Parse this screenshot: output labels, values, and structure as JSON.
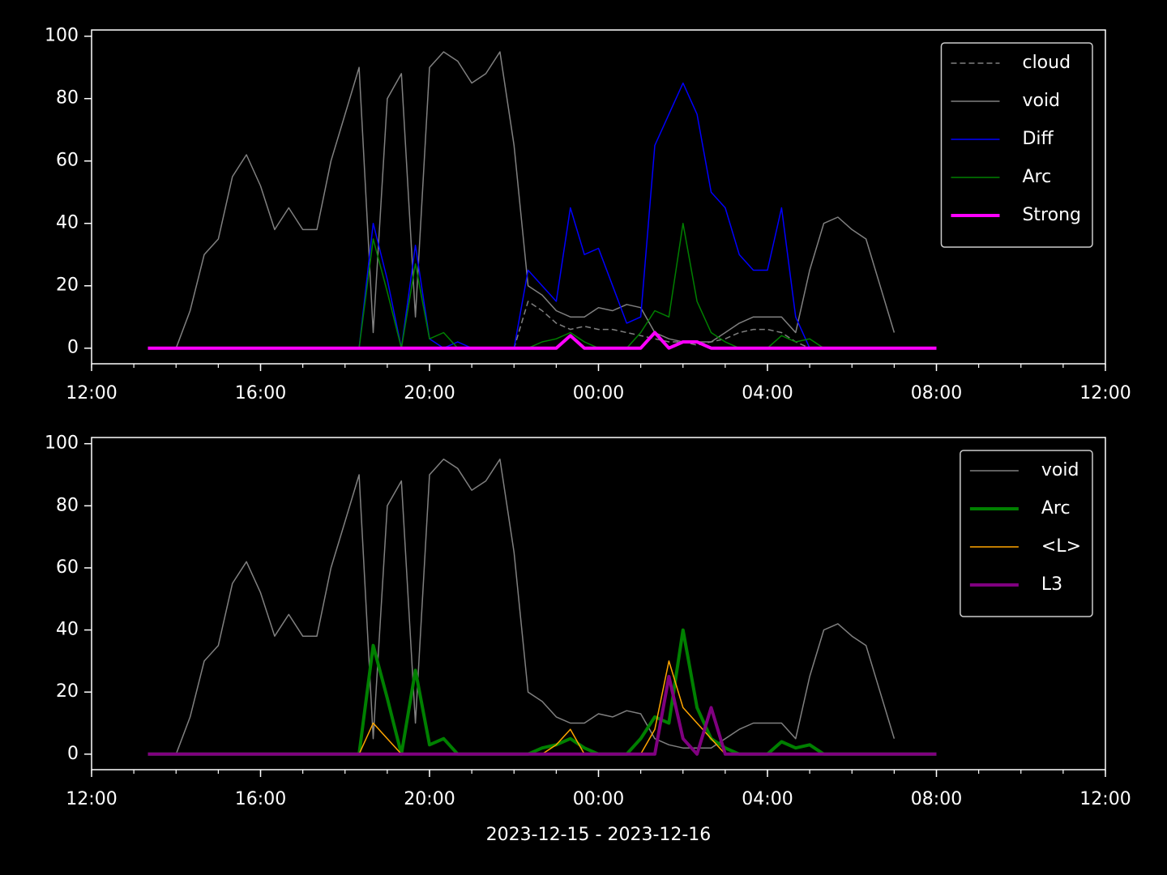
{
  "chart_data": [
    {
      "type": "line",
      "x": [
        "2023-12-15 13:20",
        "2023-12-15 13:40",
        "2023-12-15 14:00",
        "2023-12-15 14:20",
        "2023-12-15 14:40",
        "2023-12-15 15:00",
        "2023-12-15 15:20",
        "2023-12-15 15:40",
        "2023-12-15 16:00",
        "2023-12-15 16:20",
        "2023-12-15 16:40",
        "2023-12-15 17:00",
        "2023-12-15 17:20",
        "2023-12-15 17:40",
        "2023-12-15 18:00",
        "2023-12-15 18:20",
        "2023-12-15 18:40",
        "2023-12-15 19:00",
        "2023-12-15 19:20",
        "2023-12-15 19:40",
        "2023-12-15 20:00",
        "2023-12-15 20:20",
        "2023-12-15 20:40",
        "2023-12-15 21:00",
        "2023-12-15 21:20",
        "2023-12-15 21:40",
        "2023-12-15 22:00",
        "2023-12-15 22:20",
        "2023-12-15 22:40",
        "2023-12-15 23:00",
        "2023-12-15 23:20",
        "2023-12-15 23:40",
        "2023-12-16 00:00",
        "2023-12-16 00:20",
        "2023-12-16 00:40",
        "2023-12-16 01:00",
        "2023-12-16 01:20",
        "2023-12-16 01:40",
        "2023-12-16 02:00",
        "2023-12-16 02:20",
        "2023-12-16 02:40",
        "2023-12-16 03:00",
        "2023-12-16 03:20",
        "2023-12-16 03:40",
        "2023-12-16 04:00",
        "2023-12-16 04:20",
        "2023-12-16 04:40",
        "2023-12-16 05:00",
        "2023-12-16 05:20",
        "2023-12-16 05:40",
        "2023-12-16 06:00",
        "2023-12-16 06:20",
        "2023-12-16 06:40",
        "2023-12-16 07:00",
        "2023-12-16 07:20",
        "2023-12-16 07:40",
        "2023-12-16 08:00"
      ],
      "series": [
        {
          "name": "cloud",
          "color": "#808080",
          "linestyle": "dashed",
          "linewidth": 1.5,
          "values": [
            0,
            0,
            0,
            0,
            0,
            0,
            0,
            0,
            0,
            0,
            0,
            0,
            0,
            0,
            0,
            0,
            0,
            0,
            0,
            0,
            0,
            0,
            0,
            0,
            0,
            0,
            0,
            15,
            12,
            8,
            6,
            7,
            6,
            6,
            5,
            4,
            3,
            2,
            2,
            1,
            2,
            3,
            5,
            6,
            6,
            5,
            2,
            0,
            0,
            0,
            0,
            0,
            0,
            0,
            null,
            null,
            null
          ]
        },
        {
          "name": "void",
          "color": "#808080",
          "linestyle": "solid",
          "linewidth": 1.5,
          "values": [
            0,
            0,
            0,
            12,
            30,
            35,
            55,
            62,
            52,
            38,
            45,
            38,
            38,
            60,
            75,
            90,
            5,
            80,
            88,
            10,
            90,
            95,
            92,
            85,
            88,
            95,
            65,
            20,
            17,
            12,
            10,
            10,
            13,
            12,
            14,
            13,
            5,
            3,
            2,
            2,
            2,
            5,
            8,
            10,
            10,
            10,
            5,
            25,
            40,
            42,
            38,
            35,
            20,
            5,
            null,
            null,
            null
          ]
        },
        {
          "name": "Diff",
          "color": "#0000ff",
          "linestyle": "solid",
          "linewidth": 1.5,
          "values": [
            0,
            0,
            0,
            0,
            0,
            0,
            0,
            0,
            0,
            0,
            0,
            0,
            0,
            0,
            0,
            0,
            40,
            22,
            0,
            33,
            3,
            0,
            2,
            0,
            0,
            0,
            0,
            25,
            20,
            15,
            45,
            30,
            32,
            20,
            8,
            10,
            65,
            75,
            85,
            75,
            50,
            45,
            30,
            25,
            25,
            45,
            10,
            0,
            0,
            0,
            0,
            0,
            0,
            0,
            0,
            0,
            0
          ]
        },
        {
          "name": "Arc",
          "color": "#008000",
          "linestyle": "solid",
          "linewidth": 1.5,
          "values": [
            0,
            0,
            0,
            0,
            0,
            0,
            0,
            0,
            0,
            0,
            0,
            0,
            0,
            0,
            0,
            0,
            35,
            18,
            0,
            27,
            3,
            5,
            0,
            0,
            0,
            0,
            0,
            0,
            2,
            3,
            5,
            2,
            0,
            0,
            0,
            5,
            12,
            10,
            40,
            15,
            5,
            2,
            0,
            0,
            0,
            4,
            2,
            3,
            0,
            0,
            0,
            0,
            0,
            0,
            0,
            0,
            0
          ]
        },
        {
          "name": "Strong",
          "color": "#ff00ff",
          "linestyle": "solid",
          "linewidth": 4,
          "values": [
            0,
            0,
            0,
            0,
            0,
            0,
            0,
            0,
            0,
            0,
            0,
            0,
            0,
            0,
            0,
            0,
            0,
            0,
            0,
            0,
            0,
            0,
            0,
            0,
            0,
            0,
            0,
            0,
            0,
            0,
            4,
            0,
            0,
            0,
            0,
            0,
            5,
            0,
            2,
            2,
            0,
            0,
            0,
            0,
            0,
            0,
            0,
            0,
            0,
            0,
            0,
            0,
            0,
            0,
            0,
            0,
            0
          ]
        }
      ],
      "xlim": [
        "2023-12-15 12:00",
        "2023-12-16 12:00"
      ],
      "xticks": [
        {
          "value": "2023-12-15 12:00",
          "label": "12:00"
        },
        {
          "value": "2023-12-15 16:00",
          "label": "16:00"
        },
        {
          "value": "2023-12-15 20:00",
          "label": "20:00"
        },
        {
          "value": "2023-12-16 00:00",
          "label": "00:00"
        },
        {
          "value": "2023-12-16 04:00",
          "label": "04:00"
        },
        {
          "value": "2023-12-16 08:00",
          "label": "08:00"
        },
        {
          "value": "2023-12-16 12:00",
          "label": "12:00"
        }
      ],
      "ylim": [
        -5,
        102
      ],
      "yticks": [
        0,
        20,
        40,
        60,
        80,
        100
      ],
      "legend": "upper right"
    },
    {
      "type": "line",
      "x": [
        "2023-12-15 13:20",
        "2023-12-15 13:40",
        "2023-12-15 14:00",
        "2023-12-15 14:20",
        "2023-12-15 14:40",
        "2023-12-15 15:00",
        "2023-12-15 15:20",
        "2023-12-15 15:40",
        "2023-12-15 16:00",
        "2023-12-15 16:20",
        "2023-12-15 16:40",
        "2023-12-15 17:00",
        "2023-12-15 17:20",
        "2023-12-15 17:40",
        "2023-12-15 18:00",
        "2023-12-15 18:20",
        "2023-12-15 18:40",
        "2023-12-15 19:00",
        "2023-12-15 19:20",
        "2023-12-15 19:40",
        "2023-12-15 20:00",
        "2023-12-15 20:20",
        "2023-12-15 20:40",
        "2023-12-15 21:00",
        "2023-12-15 21:20",
        "2023-12-15 21:40",
        "2023-12-15 22:00",
        "2023-12-15 22:20",
        "2023-12-15 22:40",
        "2023-12-15 23:00",
        "2023-12-15 23:20",
        "2023-12-15 23:40",
        "2023-12-16 00:00",
        "2023-12-16 00:20",
        "2023-12-16 00:40",
        "2023-12-16 01:00",
        "2023-12-16 01:20",
        "2023-12-16 01:40",
        "2023-12-16 02:00",
        "2023-12-16 02:20",
        "2023-12-16 02:40",
        "2023-12-16 03:00",
        "2023-12-16 03:20",
        "2023-12-16 03:40",
        "2023-12-16 04:00",
        "2023-12-16 04:20",
        "2023-12-16 04:40",
        "2023-12-16 05:00",
        "2023-12-16 05:20",
        "2023-12-16 05:40",
        "2023-12-16 06:00",
        "2023-12-16 06:20",
        "2023-12-16 06:40",
        "2023-12-16 07:00",
        "2023-12-16 07:20",
        "2023-12-16 07:40",
        "2023-12-16 08:00"
      ],
      "series": [
        {
          "name": "void",
          "color": "#808080",
          "linestyle": "solid",
          "linewidth": 1.5,
          "values": [
            0,
            0,
            0,
            12,
            30,
            35,
            55,
            62,
            52,
            38,
            45,
            38,
            38,
            60,
            75,
            90,
            5,
            80,
            88,
            10,
            90,
            95,
            92,
            85,
            88,
            95,
            65,
            20,
            17,
            12,
            10,
            10,
            13,
            12,
            14,
            13,
            5,
            3,
            2,
            2,
            2,
            5,
            8,
            10,
            10,
            10,
            5,
            25,
            40,
            42,
            38,
            35,
            20,
            5,
            null,
            null,
            null
          ]
        },
        {
          "name": "Arc",
          "color": "#008000",
          "linestyle": "solid",
          "linewidth": 4,
          "values": [
            0,
            0,
            0,
            0,
            0,
            0,
            0,
            0,
            0,
            0,
            0,
            0,
            0,
            0,
            0,
            0,
            35,
            18,
            0,
            27,
            3,
            5,
            0,
            0,
            0,
            0,
            0,
            0,
            2,
            3,
            5,
            2,
            0,
            0,
            0,
            5,
            12,
            10,
            40,
            15,
            5,
            2,
            0,
            0,
            0,
            4,
            2,
            3,
            0,
            0,
            0,
            0,
            0,
            0,
            0,
            0,
            0
          ]
        },
        {
          "name": "<L>",
          "color": "#ffa500",
          "linestyle": "solid",
          "linewidth": 1.5,
          "values": [
            0,
            0,
            0,
            0,
            0,
            0,
            0,
            0,
            0,
            0,
            0,
            0,
            0,
            0,
            0,
            0,
            10,
            5,
            0,
            0,
            0,
            0,
            0,
            0,
            0,
            0,
            0,
            0,
            0,
            3,
            8,
            0,
            0,
            0,
            0,
            0,
            8,
            30,
            15,
            10,
            5,
            0,
            0,
            0,
            0,
            0,
            0,
            0,
            0,
            0,
            0,
            0,
            0,
            0,
            0,
            0,
            0
          ]
        },
        {
          "name": "L3",
          "color": "#800080",
          "linestyle": "solid",
          "linewidth": 4,
          "values": [
            0,
            0,
            0,
            0,
            0,
            0,
            0,
            0,
            0,
            0,
            0,
            0,
            0,
            0,
            0,
            0,
            0,
            0,
            0,
            0,
            0,
            0,
            0,
            0,
            0,
            0,
            0,
            0,
            0,
            0,
            0,
            0,
            0,
            0,
            0,
            0,
            0,
            25,
            5,
            0,
            15,
            0,
            0,
            0,
            0,
            0,
            0,
            0,
            0,
            0,
            0,
            0,
            0,
            0,
            0,
            0,
            0
          ]
        }
      ],
      "xlim": [
        "2023-12-15 12:00",
        "2023-12-16 12:00"
      ],
      "xticks": [
        {
          "value": "2023-12-15 12:00",
          "label": "12:00"
        },
        {
          "value": "2023-12-15 16:00",
          "label": "16:00"
        },
        {
          "value": "2023-12-15 20:00",
          "label": "20:00"
        },
        {
          "value": "2023-12-16 00:00",
          "label": "00:00"
        },
        {
          "value": "2023-12-16 04:00",
          "label": "04:00"
        },
        {
          "value": "2023-12-16 08:00",
          "label": "08:00"
        },
        {
          "value": "2023-12-16 12:00",
          "label": "12:00"
        }
      ],
      "ylim": [
        -5,
        102
      ],
      "yticks": [
        0,
        20,
        40,
        60,
        80,
        100
      ],
      "legend": "upper right",
      "xlabel": "2023-12-15 - 2023-12-16"
    }
  ]
}
